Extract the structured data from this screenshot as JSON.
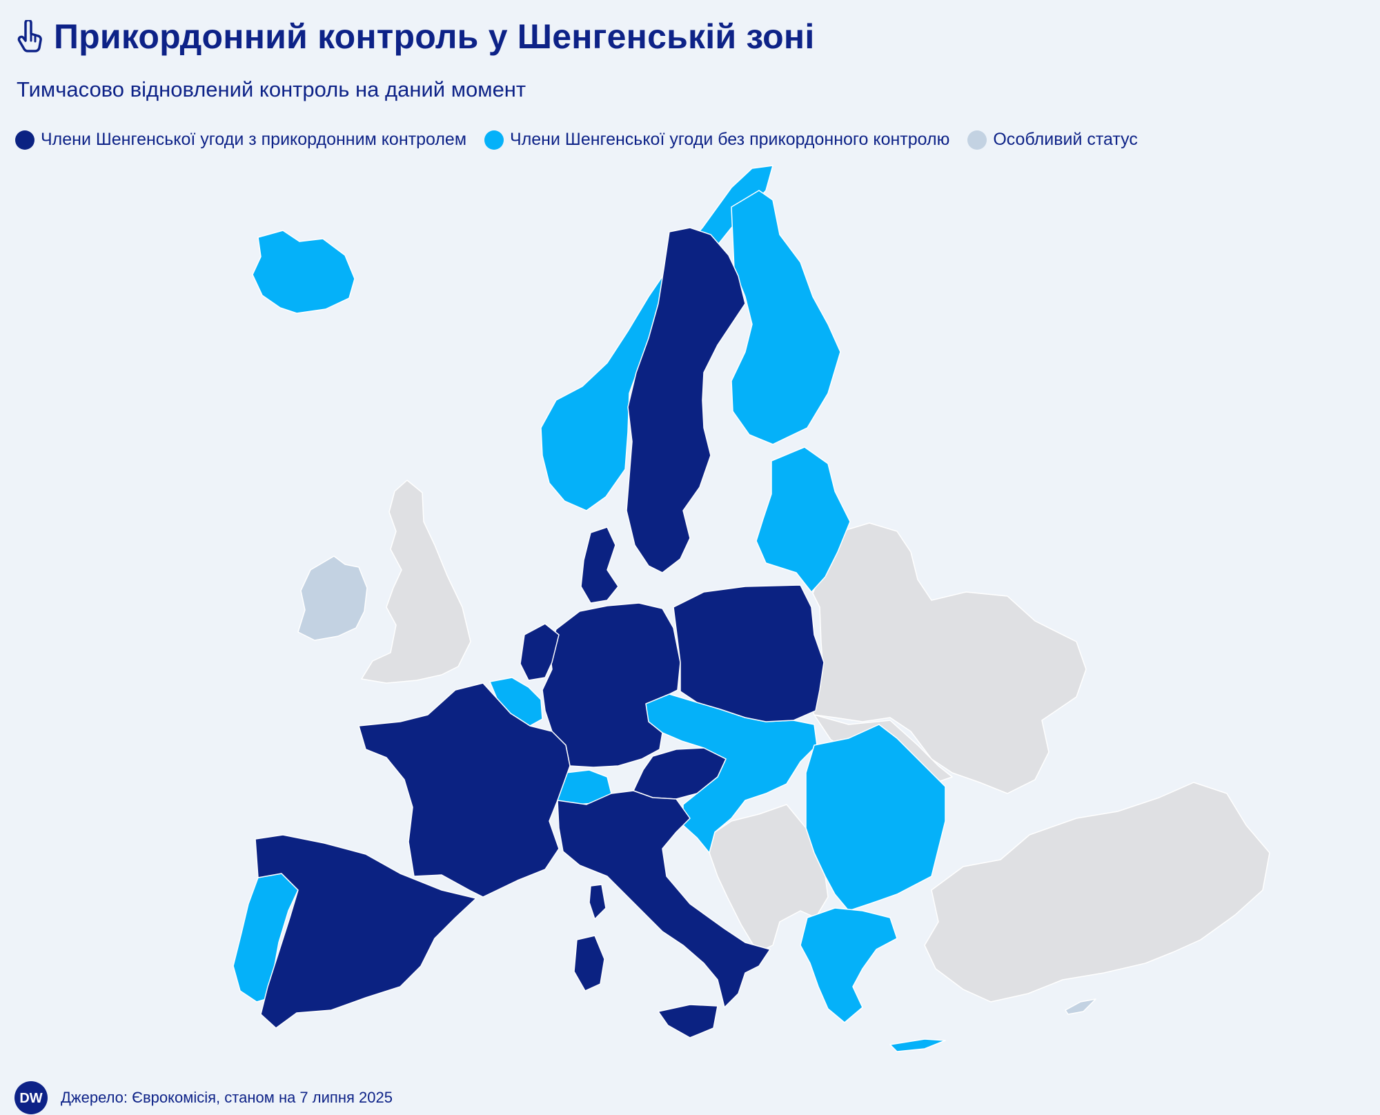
{
  "header": {
    "title": "Прикордонний контроль у Шенгенській зоні",
    "icon": "pointing-hand-icon"
  },
  "subtitle": "Тимчасово відновлений контроль на даний момент",
  "legend": [
    {
      "label": "Члени Шенгенської угоди з прикордонним контролем",
      "color": "#0b2282"
    },
    {
      "label": "Члени Шенгенської угоди без прикордонного контролю",
      "color": "#05b1f9"
    },
    {
      "label": "Особливий статус",
      "color": "#c3d2e2"
    }
  ],
  "map_colors": {
    "with_control": "#0b2282",
    "without_control": "#05b1f9",
    "special": "#c3d2e2",
    "non_schengen": "#dfe0e3",
    "sea": "#eef3f9",
    "border": "#ffffff"
  },
  "footer": {
    "logo": "DW",
    "source": "Джерело: Єврокомісія, станом на 7 липня 2025"
  }
}
